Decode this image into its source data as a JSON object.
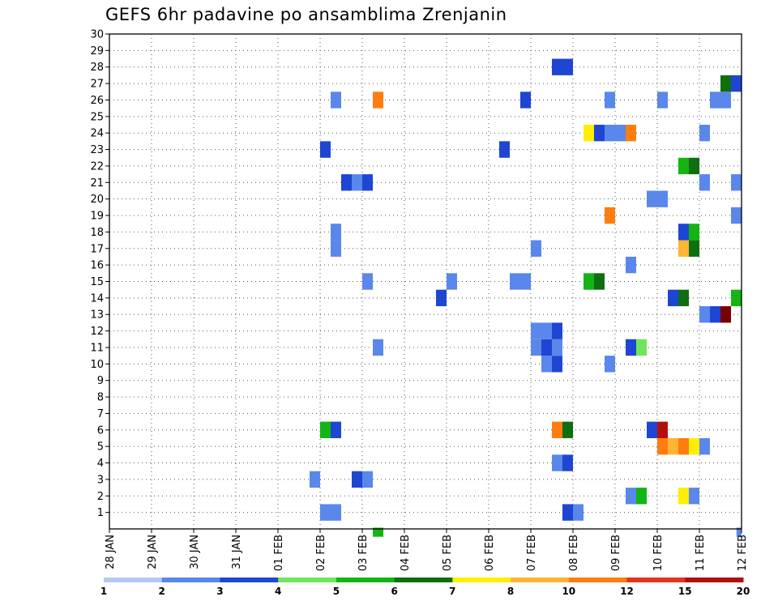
{
  "chart_data": {
    "type": "heatmap",
    "title": "GEFS 6hr padavine po ansamblima Zrenjanin",
    "ylim": [
      0,
      30
    ],
    "yticks": [
      "1",
      "2",
      "3",
      "4",
      "5",
      "6",
      "7",
      "8",
      "9",
      "10",
      "11",
      "12",
      "13",
      "14",
      "15",
      "16",
      "17",
      "18",
      "19",
      "20",
      "21",
      "22",
      "23",
      "24",
      "25",
      "26",
      "27",
      "28",
      "29",
      "30"
    ],
    "xlim": [
      0,
      15
    ],
    "xticks": [
      "28 JAN",
      "29 JAN",
      "30 JAN",
      "31 JAN",
      "01 FEB",
      "02 FEB",
      "03 FEB",
      "04 FEB",
      "05 FEB",
      "06 FEB",
      "07 FEB",
      "08 FEB",
      "09 FEB",
      "10 FEB",
      "11 FEB",
      "12 FEB"
    ],
    "grid": true,
    "colorbar": {
      "labels": [
        "1",
        "2",
        "3",
        "4",
        "5",
        "6",
        "7",
        "8",
        "10",
        "12",
        "15",
        "20"
      ],
      "colors": [
        "#b4c8f5",
        "#5a87eb",
        "#1e46d2",
        "#6ee65a",
        "#14b414",
        "#0f6e0f",
        "#ffee00",
        "#ffb432",
        "#ff7d0f",
        "#e6321e",
        "#b40f0f",
        "#780000"
      ]
    },
    "cells": [
      [
        1,
        5.0,
        5.5,
        1
      ],
      [
        1,
        10.75,
        11.0,
        2
      ],
      [
        1,
        11.0,
        11.25,
        1
      ],
      [
        2,
        12.25,
        12.5,
        1
      ],
      [
        2,
        12.5,
        12.75,
        4
      ],
      [
        2,
        13.5,
        13.75,
        6
      ],
      [
        2,
        13.75,
        14.0,
        1
      ],
      [
        3,
        4.75,
        5.0,
        1
      ],
      [
        3,
        5.75,
        6.0,
        2
      ],
      [
        3,
        6.0,
        6.25,
        1
      ],
      [
        4,
        10.5,
        10.75,
        1
      ],
      [
        4,
        10.75,
        11.0,
        2
      ],
      [
        5,
        13.0,
        13.25,
        8
      ],
      [
        5,
        13.25,
        13.5,
        7
      ],
      [
        5,
        13.5,
        13.75,
        8
      ],
      [
        5,
        13.75,
        14.0,
        6
      ],
      [
        5,
        14.0,
        14.25,
        1
      ],
      [
        6,
        5.0,
        5.25,
        4
      ],
      [
        6,
        5.25,
        5.5,
        2
      ],
      [
        6,
        10.5,
        10.75,
        8
      ],
      [
        6,
        10.75,
        11.0,
        5
      ],
      [
        6,
        12.75,
        13.0,
        2
      ],
      [
        6,
        13.0,
        13.25,
        10
      ],
      [
        10,
        10.25,
        10.5,
        1
      ],
      [
        10,
        10.5,
        10.75,
        2
      ],
      [
        10,
        11.75,
        12.0,
        1
      ],
      [
        11,
        6.25,
        6.5,
        1
      ],
      [
        11,
        10.0,
        10.25,
        1
      ],
      [
        11,
        10.25,
        10.5,
        2
      ],
      [
        11,
        10.5,
        10.75,
        1
      ],
      [
        11,
        12.25,
        12.5,
        2
      ],
      [
        11,
        12.5,
        12.75,
        3
      ],
      [
        12,
        10.0,
        10.5,
        1
      ],
      [
        12,
        10.5,
        10.75,
        2
      ],
      [
        13,
        14.0,
        14.25,
        1
      ],
      [
        13,
        14.25,
        14.5,
        2
      ],
      [
        13,
        14.5,
        14.75,
        11
      ],
      [
        14,
        7.75,
        8.0,
        2
      ],
      [
        14,
        13.25,
        13.5,
        2
      ],
      [
        14,
        13.5,
        13.75,
        5
      ],
      [
        14,
        14.75,
        15.0,
        4
      ],
      [
        15,
        6.0,
        6.25,
        1
      ],
      [
        15,
        8.0,
        8.25,
        1
      ],
      [
        15,
        9.5,
        10.0,
        1
      ],
      [
        15,
        11.25,
        11.5,
        4
      ],
      [
        15,
        11.5,
        11.75,
        5
      ],
      [
        16,
        12.25,
        12.5,
        1
      ],
      [
        17,
        5.25,
        5.5,
        1
      ],
      [
        17,
        10.0,
        10.25,
        1
      ],
      [
        17,
        13.5,
        13.75,
        7
      ],
      [
        17,
        13.75,
        14.0,
        5
      ],
      [
        18,
        5.25,
        5.5,
        1
      ],
      [
        18,
        13.5,
        13.75,
        2
      ],
      [
        18,
        13.75,
        14.0,
        4
      ],
      [
        19,
        11.75,
        12.0,
        8
      ],
      [
        19,
        14.75,
        15.0,
        1
      ],
      [
        20,
        12.75,
        13.25,
        1
      ],
      [
        21,
        5.5,
        5.75,
        2
      ],
      [
        21,
        5.75,
        6.0,
        1
      ],
      [
        21,
        6.0,
        6.25,
        2
      ],
      [
        21,
        14.0,
        14.25,
        1
      ],
      [
        21,
        14.75,
        15.0,
        1
      ],
      [
        22,
        13.5,
        13.75,
        4
      ],
      [
        22,
        13.75,
        14.0,
        5
      ],
      [
        23,
        5.0,
        5.25,
        2
      ],
      [
        23,
        9.25,
        9.5,
        2
      ],
      [
        24,
        11.25,
        11.5,
        6
      ],
      [
        24,
        11.5,
        11.75,
        2
      ],
      [
        24,
        11.75,
        12.0,
        1
      ],
      [
        24,
        12.0,
        12.25,
        1
      ],
      [
        24,
        12.25,
        12.5,
        8
      ],
      [
        24,
        14.0,
        14.25,
        1
      ],
      [
        26,
        5.25,
        5.5,
        1
      ],
      [
        26,
        6.25,
        6.5,
        8
      ],
      [
        26,
        9.75,
        10.0,
        2
      ],
      [
        26,
        11.75,
        12.0,
        1
      ],
      [
        26,
        13.0,
        13.25,
        1
      ],
      [
        26,
        14.25,
        14.75,
        1
      ],
      [
        27,
        14.5,
        14.75,
        5
      ],
      [
        27,
        14.75,
        15.0,
        2
      ],
      [
        28,
        10.5,
        11.0,
        2
      ],
      [
        -1,
        6.25,
        6.5,
        4
      ],
      [
        -1,
        14.88,
        15.0,
        1
      ]
    ]
  }
}
